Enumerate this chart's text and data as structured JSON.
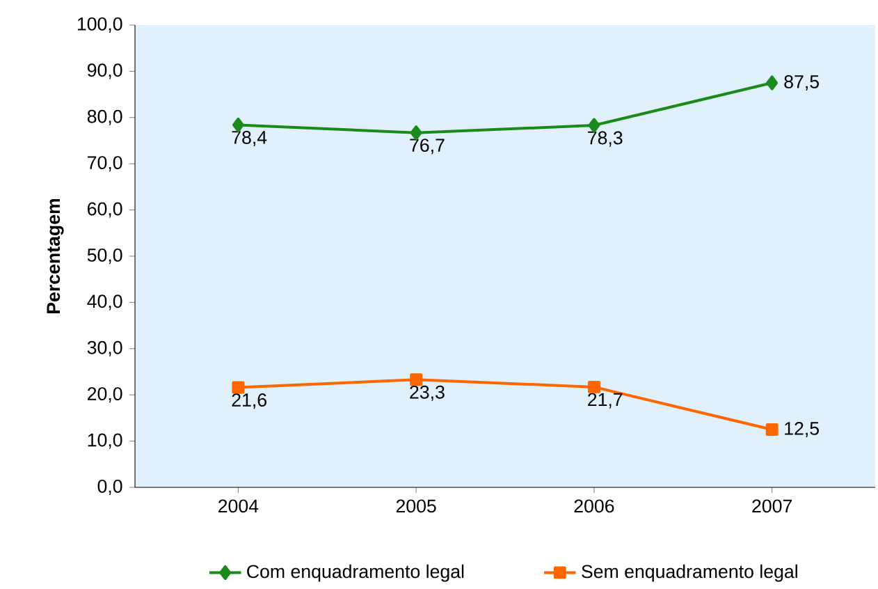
{
  "chart_data": {
    "type": "line",
    "ylabel": "Percentagem",
    "categories": [
      "2004",
      "2005",
      "2006",
      "2007"
    ],
    "series": [
      {
        "name": "Com enquadramento legal",
        "color": "#1a8a1a",
        "marker": "diamond",
        "values": [
          78.4,
          76.7,
          78.3,
          87.5
        ],
        "value_labels": [
          "78,4",
          "76,7",
          "78,3",
          "87,5"
        ]
      },
      {
        "name": "Sem enquadramento legal",
        "color": "#ff6600",
        "marker": "square",
        "values": [
          21.6,
          23.3,
          21.7,
          12.5
        ],
        "value_labels": [
          "21,6",
          "23,3",
          "21,7",
          "12,5"
        ]
      }
    ],
    "ylim": [
      0,
      100
    ],
    "yticks": [
      {
        "value": 0,
        "label": "0,0"
      },
      {
        "value": 10,
        "label": "10,0"
      },
      {
        "value": 20,
        "label": "20,0"
      },
      {
        "value": 30,
        "label": "30,0"
      },
      {
        "value": 40,
        "label": "40,0"
      },
      {
        "value": 50,
        "label": "50,0"
      },
      {
        "value": 60,
        "label": "60,0"
      },
      {
        "value": 70,
        "label": "70,0"
      },
      {
        "value": 80,
        "label": "80,0"
      },
      {
        "value": 90,
        "label": "90,0"
      },
      {
        "value": 100,
        "label": "100,0"
      }
    ],
    "grid": false,
    "legend": "bottom",
    "line_style": "solid"
  }
}
